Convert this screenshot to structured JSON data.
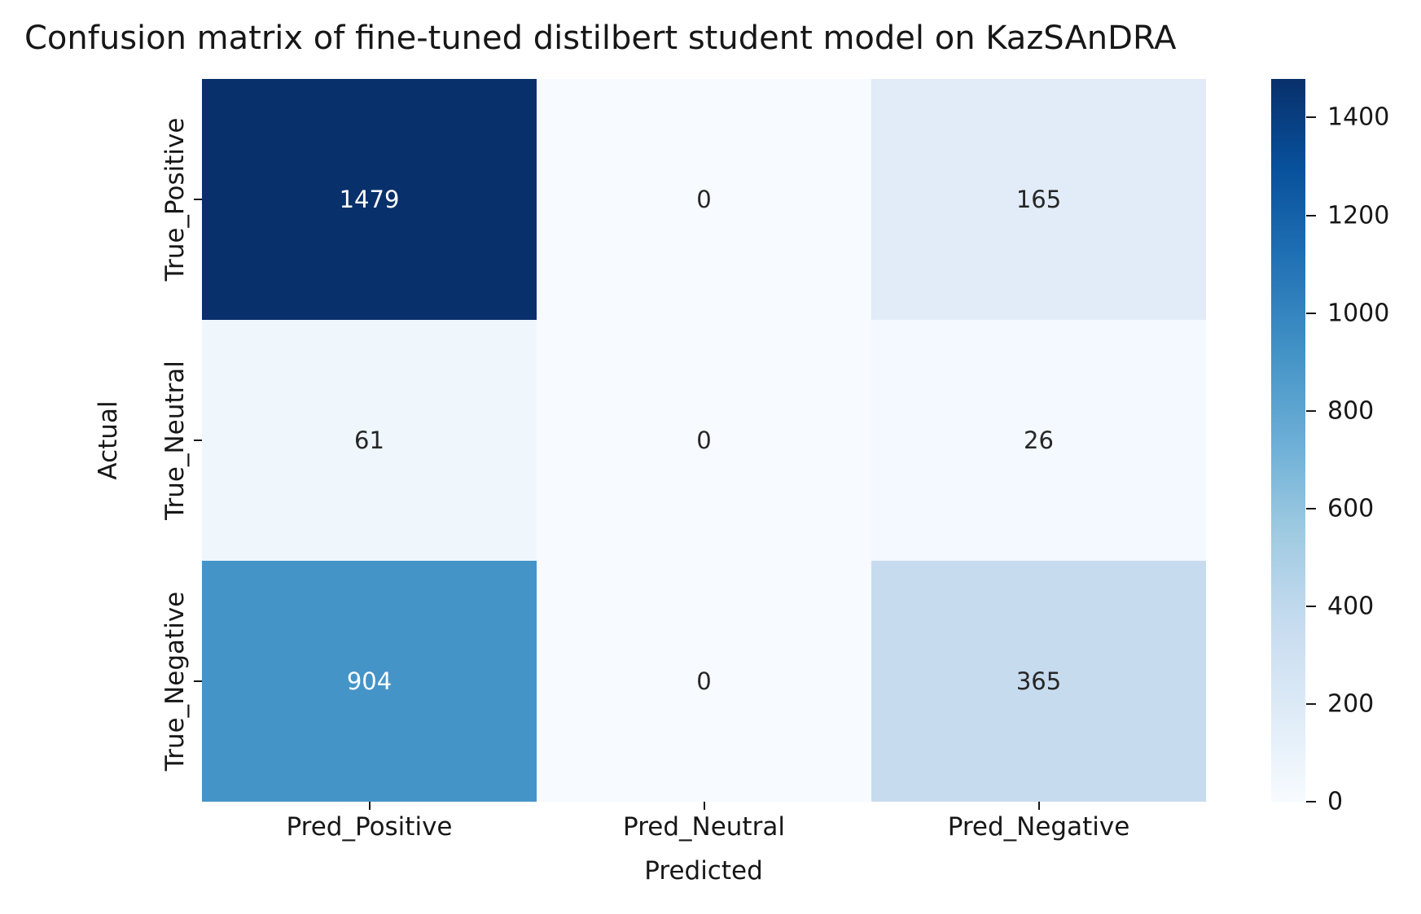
{
  "chart_data": {
    "type": "heatmap",
    "title": "Confusion matrix of fine-tuned distilbert student model on KazSAnDRA",
    "xlabel": "Predicted",
    "ylabel": "Actual",
    "x_categories": [
      "Pred_Positive",
      "Pred_Neutral",
      "Pred_Negative"
    ],
    "y_categories": [
      "True_Positive",
      "True_Neutral",
      "True_Negative"
    ],
    "values": [
      [
        1479,
        0,
        165
      ],
      [
        61,
        0,
        26
      ],
      [
        904,
        0,
        365
      ]
    ],
    "colormap": "Blues",
    "vmin": 0,
    "vmax": 1479,
    "grid": false,
    "legend": "colorbar-right",
    "colorbar_ticks": [
      0,
      200,
      400,
      600,
      800,
      1000,
      1200,
      1400
    ],
    "cell_colors": [
      [
        "#08306b",
        "#f7fbff",
        "#e1ecf8"
      ],
      [
        "#eff6fc",
        "#f7fbff",
        "#f3f9fe"
      ],
      [
        "#4494c8",
        "#f7fbff",
        "#c7dbef"
      ]
    ],
    "cell_text_colors": [
      [
        "#ffffff",
        "#262626",
        "#262626"
      ],
      [
        "#262626",
        "#262626",
        "#262626"
      ],
      [
        "#ffffff",
        "#262626",
        "#262626"
      ]
    ],
    "colorbar_gradient_top_to_bottom": [
      "#08306b",
      "#08519c",
      "#2171b5",
      "#4292c6",
      "#6baed6",
      "#9ecae1",
      "#c6dbef",
      "#deebf7",
      "#f7fbff"
    ]
  }
}
